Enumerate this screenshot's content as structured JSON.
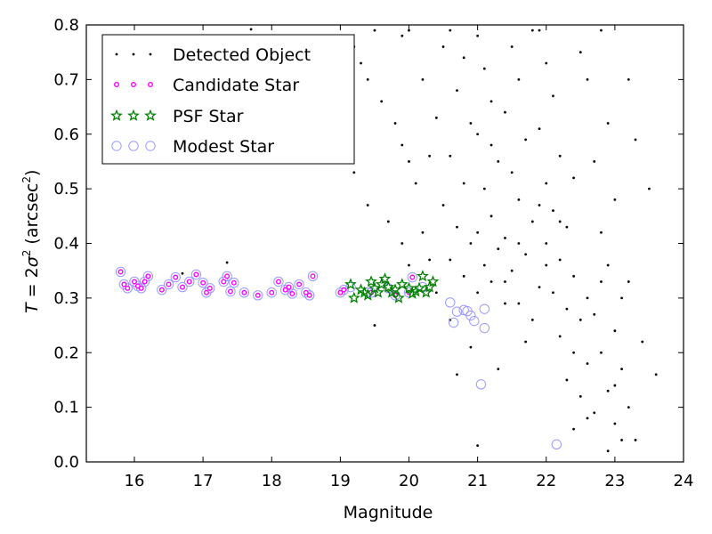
{
  "chart_data": {
    "type": "scatter",
    "xlabel": "Magnitude",
    "ylabel_parts": [
      "T",
      " = 2",
      "σ",
      "2",
      " (arcsec",
      "2",
      ")"
    ],
    "xlim": [
      15.3,
      24.0
    ],
    "ylim": [
      0.0,
      0.8
    ],
    "x_ticks": [
      "16",
      "17",
      "18",
      "19",
      "20",
      "21",
      "22",
      "23",
      "24"
    ],
    "y_ticks": [
      "0.0",
      "0.1",
      "0.2",
      "0.3",
      "0.4",
      "0.5",
      "0.6",
      "0.7",
      "0.8"
    ],
    "grid": false,
    "legend_position": "top-left",
    "legend": [
      {
        "label": "Detected Object",
        "marker": "dot",
        "color": "#000000"
      },
      {
        "label": "Candidate Star",
        "marker": "small-circle",
        "color": "#ff00ff"
      },
      {
        "label": "PSF Star",
        "marker": "star",
        "color": "#008000"
      },
      {
        "label": "Modest Star",
        "marker": "open-circle",
        "color": "#9999ff"
      }
    ],
    "series": [
      {
        "name": "Detected Object",
        "marker": "dot",
        "color": "#000000",
        "points": [
          [
            16.7,
            0.345
          ],
          [
            17.35,
            0.365
          ],
          [
            17.7,
            0.792
          ],
          [
            19.5,
            0.79
          ],
          [
            19.9,
            0.78
          ],
          [
            19.2,
            0.76
          ],
          [
            19.3,
            0.73
          ],
          [
            19.4,
            0.7
          ],
          [
            19.6,
            0.66
          ],
          [
            19.8,
            0.62
          ],
          [
            19.9,
            0.58
          ],
          [
            20.0,
            0.55
          ],
          [
            20.1,
            0.51
          ],
          [
            19.4,
            0.47
          ],
          [
            19.7,
            0.44
          ],
          [
            20.2,
            0.42
          ],
          [
            19.9,
            0.4
          ],
          [
            20.3,
            0.37
          ],
          [
            20.0,
            0.36
          ],
          [
            19.5,
            0.25
          ],
          [
            20.3,
            0.56
          ],
          [
            20.4,
            0.63
          ],
          [
            20.2,
            0.7
          ],
          [
            20.5,
            0.76
          ],
          [
            20.6,
            0.79
          ],
          [
            20.8,
            0.74
          ],
          [
            20.7,
            0.68
          ],
          [
            20.9,
            0.62
          ],
          [
            20.6,
            0.56
          ],
          [
            20.8,
            0.51
          ],
          [
            20.5,
            0.47
          ],
          [
            20.7,
            0.43
          ],
          [
            20.9,
            0.4
          ],
          [
            20.6,
            0.37
          ],
          [
            20.8,
            0.34
          ],
          [
            20.4,
            0.31
          ],
          [
            20.9,
            0.21
          ],
          [
            20.7,
            0.16
          ],
          [
            21.0,
            0.78
          ],
          [
            21.1,
            0.72
          ],
          [
            21.2,
            0.66
          ],
          [
            21.0,
            0.6
          ],
          [
            21.3,
            0.55
          ],
          [
            21.1,
            0.5
          ],
          [
            21.2,
            0.45
          ],
          [
            21.0,
            0.42
          ],
          [
            21.3,
            0.39
          ],
          [
            21.1,
            0.36
          ],
          [
            21.2,
            0.33
          ],
          [
            21.0,
            0.31
          ],
          [
            21.4,
            0.29
          ],
          [
            21.3,
            0.17
          ],
          [
            21.5,
            0.76
          ],
          [
            21.6,
            0.7
          ],
          [
            21.4,
            0.64
          ],
          [
            21.7,
            0.59
          ],
          [
            21.5,
            0.53
          ],
          [
            21.6,
            0.48
          ],
          [
            21.8,
            0.44
          ],
          [
            21.4,
            0.41
          ],
          [
            21.7,
            0.38
          ],
          [
            21.5,
            0.35
          ],
          [
            21.9,
            0.32
          ],
          [
            21.6,
            0.29
          ],
          [
            21.8,
            0.26
          ],
          [
            21.7,
            0.22
          ],
          [
            21.9,
            0.79
          ],
          [
            22.0,
            0.73
          ],
          [
            22.1,
            0.67
          ],
          [
            21.9,
            0.61
          ],
          [
            22.2,
            0.56
          ],
          [
            22.0,
            0.51
          ],
          [
            22.1,
            0.46
          ],
          [
            22.3,
            0.43
          ],
          [
            22.0,
            0.4
          ],
          [
            22.2,
            0.37
          ],
          [
            22.4,
            0.34
          ],
          [
            22.1,
            0.31
          ],
          [
            22.3,
            0.28
          ],
          [
            22.5,
            0.26
          ],
          [
            22.2,
            0.23
          ],
          [
            22.4,
            0.2
          ],
          [
            22.6,
            0.18
          ],
          [
            22.3,
            0.15
          ],
          [
            22.5,
            0.12
          ],
          [
            22.7,
            0.09
          ],
          [
            22.4,
            0.06
          ],
          [
            22.6,
            0.08
          ],
          [
            22.8,
            0.79
          ],
          [
            22.6,
            0.7
          ],
          [
            22.9,
            0.62
          ],
          [
            22.7,
            0.55
          ],
          [
            23.0,
            0.48
          ],
          [
            22.8,
            0.42
          ],
          [
            22.9,
            0.36
          ],
          [
            23.1,
            0.3
          ],
          [
            22.7,
            0.27
          ],
          [
            23.0,
            0.24
          ],
          [
            22.8,
            0.2
          ],
          [
            23.1,
            0.17
          ],
          [
            22.9,
            0.13
          ],
          [
            23.2,
            0.1
          ],
          [
            23.0,
            0.07
          ],
          [
            23.1,
            0.04
          ],
          [
            22.9,
            0.02
          ],
          [
            23.3,
            0.59
          ],
          [
            23.5,
            0.5
          ],
          [
            23.2,
            0.33
          ],
          [
            23.4,
            0.22
          ],
          [
            23.6,
            0.16
          ],
          [
            23.3,
            0.04
          ],
          [
            19.1,
            0.67
          ],
          [
            19.2,
            0.53
          ],
          [
            20.0,
            0.79
          ],
          [
            21.8,
            0.79
          ],
          [
            22.5,
            0.75
          ],
          [
            23.2,
            0.7
          ],
          [
            21.2,
            0.58
          ],
          [
            22.4,
            0.52
          ],
          [
            21.6,
            0.4
          ],
          [
            22.0,
            0.36
          ],
          [
            22.6,
            0.3
          ],
          [
            21.9,
            0.47
          ],
          [
            20.6,
            0.26
          ],
          [
            21.4,
            0.33
          ],
          [
            22.2,
            0.44
          ],
          [
            22.8,
            0.33
          ],
          [
            23.0,
            0.14
          ],
          [
            21.0,
            0.03
          ]
        ]
      },
      {
        "name": "Candidate Star",
        "marker": "small-circle",
        "color": "#ff00ff",
        "points": [
          [
            15.8,
            0.348
          ],
          [
            15.85,
            0.325
          ],
          [
            15.9,
            0.318
          ],
          [
            16.0,
            0.33
          ],
          [
            16.05,
            0.322
          ],
          [
            16.1,
            0.318
          ],
          [
            16.15,
            0.33
          ],
          [
            16.2,
            0.34
          ],
          [
            16.4,
            0.315
          ],
          [
            16.5,
            0.325
          ],
          [
            16.6,
            0.338
          ],
          [
            16.7,
            0.32
          ],
          [
            16.8,
            0.33
          ],
          [
            16.9,
            0.343
          ],
          [
            17.0,
            0.328
          ],
          [
            17.05,
            0.31
          ],
          [
            17.1,
            0.318
          ],
          [
            17.3,
            0.33
          ],
          [
            17.35,
            0.34
          ],
          [
            17.4,
            0.312
          ],
          [
            17.45,
            0.328
          ],
          [
            17.6,
            0.31
          ],
          [
            17.8,
            0.305
          ],
          [
            18.0,
            0.31
          ],
          [
            18.1,
            0.33
          ],
          [
            18.2,
            0.315
          ],
          [
            18.25,
            0.32
          ],
          [
            18.3,
            0.308
          ],
          [
            18.4,
            0.325
          ],
          [
            18.5,
            0.31
          ],
          [
            18.6,
            0.34
          ],
          [
            18.55,
            0.305
          ],
          [
            19.0,
            0.31
          ],
          [
            19.05,
            0.315
          ],
          [
            20.05,
            0.338
          ],
          [
            19.45,
            0.31
          ],
          [
            19.8,
            0.305
          ],
          [
            20.0,
            0.31
          ]
        ]
      },
      {
        "name": "PSF Star",
        "marker": "star",
        "color": "#008000",
        "points": [
          [
            19.15,
            0.325
          ],
          [
            19.2,
            0.3
          ],
          [
            19.3,
            0.315
          ],
          [
            19.35,
            0.31
          ],
          [
            19.4,
            0.305
          ],
          [
            19.45,
            0.33
          ],
          [
            19.5,
            0.318
          ],
          [
            19.55,
            0.31
          ],
          [
            19.6,
            0.325
          ],
          [
            19.65,
            0.335
          ],
          [
            19.7,
            0.32
          ],
          [
            19.75,
            0.31
          ],
          [
            19.8,
            0.315
          ],
          [
            19.85,
            0.3
          ],
          [
            19.9,
            0.325
          ],
          [
            20.0,
            0.318
          ],
          [
            20.05,
            0.308
          ],
          [
            20.1,
            0.312
          ],
          [
            20.15,
            0.318
          ],
          [
            20.2,
            0.34
          ],
          [
            20.25,
            0.31
          ],
          [
            20.3,
            0.32
          ],
          [
            20.35,
            0.33
          ]
        ]
      },
      {
        "name": "Modest Star",
        "marker": "open-circle",
        "color": "#9999ff",
        "points": [
          [
            15.8,
            0.348
          ],
          [
            15.85,
            0.325
          ],
          [
            15.9,
            0.318
          ],
          [
            16.0,
            0.33
          ],
          [
            16.05,
            0.322
          ],
          [
            16.1,
            0.318
          ],
          [
            16.15,
            0.33
          ],
          [
            16.2,
            0.34
          ],
          [
            16.4,
            0.315
          ],
          [
            16.5,
            0.325
          ],
          [
            16.6,
            0.338
          ],
          [
            16.7,
            0.32
          ],
          [
            16.8,
            0.33
          ],
          [
            16.9,
            0.343
          ],
          [
            17.0,
            0.328
          ],
          [
            17.05,
            0.31
          ],
          [
            17.1,
            0.318
          ],
          [
            17.3,
            0.33
          ],
          [
            17.35,
            0.34
          ],
          [
            17.4,
            0.312
          ],
          [
            17.45,
            0.328
          ],
          [
            17.6,
            0.31
          ],
          [
            17.8,
            0.305
          ],
          [
            18.0,
            0.31
          ],
          [
            18.1,
            0.33
          ],
          [
            18.2,
            0.315
          ],
          [
            18.25,
            0.32
          ],
          [
            18.3,
            0.308
          ],
          [
            18.4,
            0.325
          ],
          [
            18.5,
            0.31
          ],
          [
            18.6,
            0.34
          ],
          [
            18.55,
            0.305
          ],
          [
            19.0,
            0.31
          ],
          [
            19.05,
            0.315
          ],
          [
            20.05,
            0.338
          ],
          [
            19.45,
            0.31
          ],
          [
            19.8,
            0.305
          ],
          [
            20.0,
            0.31
          ],
          [
            20.6,
            0.292
          ],
          [
            20.65,
            0.255
          ],
          [
            20.7,
            0.275
          ],
          [
            20.8,
            0.278
          ],
          [
            20.85,
            0.276
          ],
          [
            20.9,
            0.268
          ],
          [
            20.95,
            0.258
          ],
          [
            21.1,
            0.245
          ],
          [
            21.1,
            0.28
          ],
          [
            21.05,
            0.142
          ],
          [
            22.15,
            0.032
          ],
          [
            19.15,
            0.32
          ],
          [
            19.4,
            0.31
          ],
          [
            19.7,
            0.318
          ],
          [
            20.2,
            0.32
          ]
        ]
      }
    ]
  }
}
